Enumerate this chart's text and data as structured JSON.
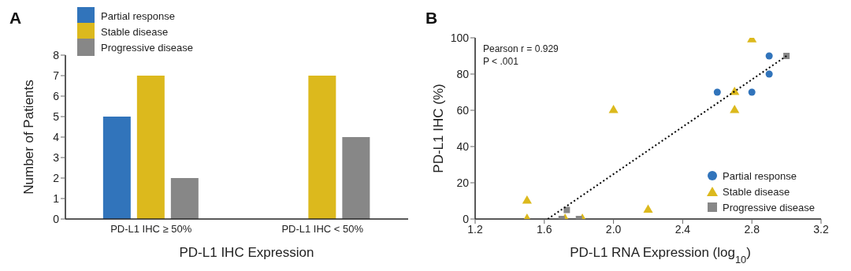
{
  "chart_data": [
    {
      "type": "bar",
      "title": "A",
      "xlabel": "PD-L1 IHC Expression",
      "ylabel": "Number of Patients",
      "categories": [
        "PD-L1 IHC ≥ 50%",
        "PD-L1 IHC < 50%"
      ],
      "series": [
        {
          "name": "Partial response",
          "color": "#3174bb",
          "values": [
            5,
            0
          ]
        },
        {
          "name": "Stable disease",
          "color": "#dcb91d",
          "values": [
            7,
            7
          ]
        },
        {
          "name": "Progressive disease",
          "color": "#878787",
          "values": [
            2,
            4
          ]
        }
      ],
      "ylim": [
        0,
        8
      ],
      "yticks": [
        0,
        1,
        2,
        3,
        4,
        5,
        6,
        7,
        8
      ],
      "grid": false,
      "legend": "top left"
    },
    {
      "type": "scatter",
      "title": "B",
      "xlabel": "PD-L1 RNA Expression (log$_{10}$)",
      "ylabel": "PD-L1 IHC (%)",
      "series": [
        {
          "name": "Partial response",
          "color": "#3174bb",
          "marker": "circle",
          "x": [
            2.6,
            2.8,
            2.9,
            2.9
          ],
          "values": [
            70,
            70,
            90,
            80
          ]
        },
        {
          "name": "Stable disease",
          "color": "#dcb91d",
          "marker": "triangle",
          "x": [
            2.8,
            2.7,
            2.7,
            2.0,
            1.5,
            1.5,
            1.72,
            1.82,
            2.2
          ],
          "values": [
            99,
            70,
            60,
            60,
            10,
            0,
            0,
            0,
            5
          ]
        },
        {
          "name": "Progressive disease",
          "color": "#878787",
          "marker": "square",
          "x": [
            3.0,
            1.73,
            1.7,
            1.8
          ],
          "values": [
            90,
            5,
            0,
            0
          ]
        },
        {
          "type": "line",
          "color": "#000000",
          "line_style": "dotted",
          "x": [
            1.62,
            3.0
          ],
          "values": [
            0,
            90
          ]
        }
      ],
      "annotations": [
        "Pearson r = 0.929",
        "P < .001"
      ],
      "xlim": [
        1.2,
        3.2
      ],
      "xticks": [
        {
          "value": 1.2,
          "label": "1.2"
        },
        {
          "value": 1.6,
          "label": "1.6"
        },
        {
          "value": 2,
          "label": "2.0"
        },
        {
          "value": 2.4,
          "label": "2.4"
        },
        {
          "value": 2.8,
          "label": "2.8"
        },
        {
          "value": 3.2,
          "label": "3.2"
        }
      ],
      "ylim": [
        0,
        100
      ],
      "yticks": [
        0,
        20,
        40,
        60,
        80,
        100
      ],
      "grid": false,
      "legend": "bottom right"
    }
  ]
}
